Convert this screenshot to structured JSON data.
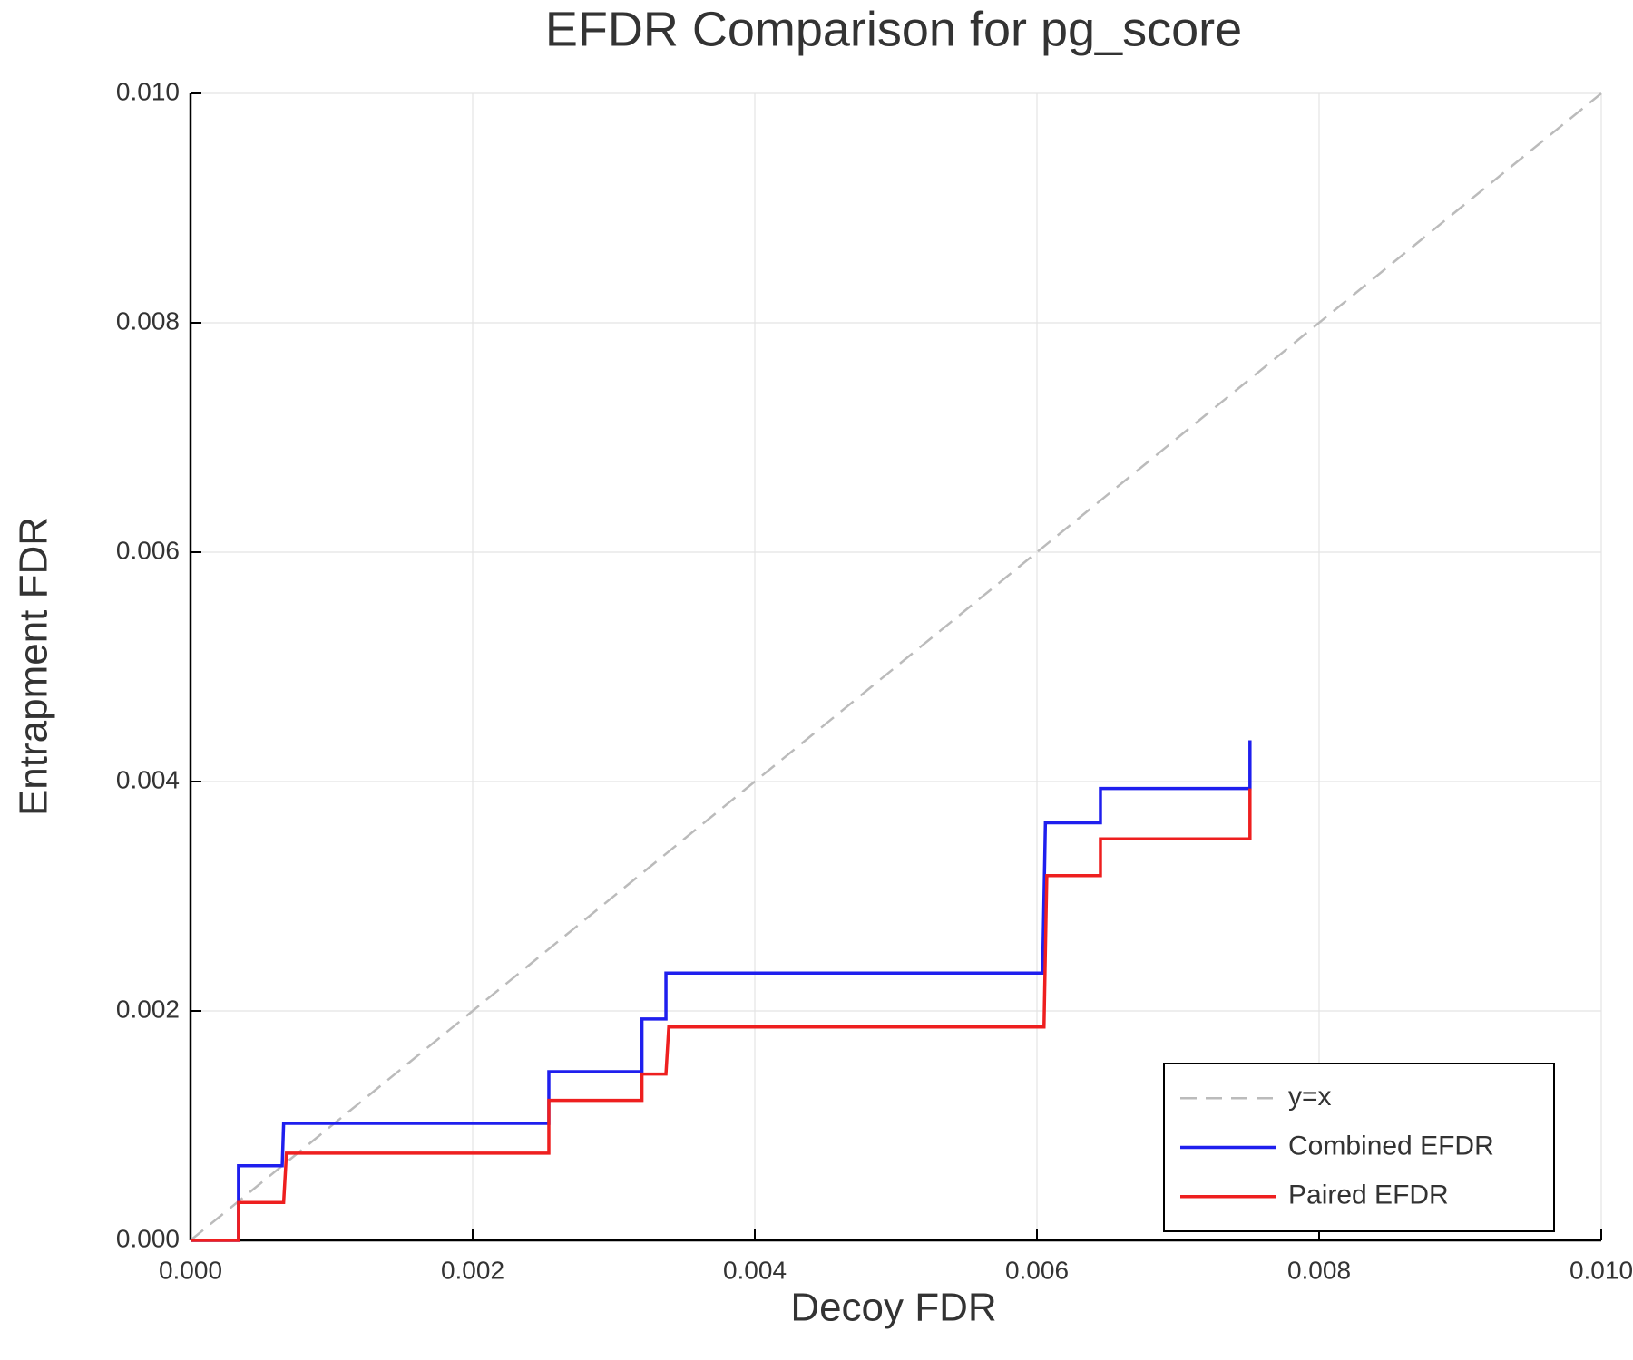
{
  "chart_data": {
    "type": "line",
    "title": "EFDR Comparison for pg_score",
    "x_label": "Decoy FDR",
    "y_label": "Entrapment FDR",
    "xlim": [
      0,
      0.01
    ],
    "ylim": [
      0,
      0.01
    ],
    "xticks": [
      {
        "value": 0,
        "label": "0.000"
      },
      {
        "value": 0.002,
        "label": "0.002"
      },
      {
        "value": 0.004,
        "label": "0.004"
      },
      {
        "value": 0.006,
        "label": "0.006"
      },
      {
        "value": 0.008,
        "label": "0.008"
      },
      {
        "value": 0.01,
        "label": "0.010"
      }
    ],
    "yticks": [
      {
        "value": 0,
        "label": "0.000"
      },
      {
        "value": 0.002,
        "label": "0.002"
      },
      {
        "value": 0.004,
        "label": "0.004"
      },
      {
        "value": 0.006,
        "label": "0.006"
      },
      {
        "value": 0.008,
        "label": "0.008"
      },
      {
        "value": 0.01,
        "label": "0.010"
      }
    ],
    "grid": true,
    "legend_position": "bottom-right",
    "series": [
      {
        "name": "y=x",
        "color": "#bbbbbb",
        "dashed": true,
        "x": [
          0,
          0.01
        ],
        "values": [
          0,
          0.01
        ]
      },
      {
        "name": "Combined EFDR",
        "color": "#1f1fee",
        "dashed": false,
        "x": [
          0,
          0.00034,
          0.00034,
          0.00065,
          0.00066,
          0.00068,
          0.00254,
          0.00254,
          0.0032,
          0.0032,
          0.00337,
          0.00337,
          0.00604,
          0.00606,
          0.00645,
          0.00645,
          0.00751,
          0.00751
        ],
        "values": [
          0,
          0,
          0.00065,
          0.00065,
          0.00102,
          0.00102,
          0.00102,
          0.00147,
          0.00147,
          0.00193,
          0.00193,
          0.00233,
          0.00233,
          0.00364,
          0.00364,
          0.00394,
          0.00394,
          0.00436
        ]
      },
      {
        "name": "Paired EFDR",
        "color": "#ee1f1f",
        "dashed": false,
        "x": [
          0,
          0.00034,
          0.00034,
          0.00066,
          0.00068,
          0.00254,
          0.00254,
          0.0032,
          0.0032,
          0.00337,
          0.00339,
          0.00605,
          0.00607,
          0.00645,
          0.00645,
          0.00751,
          0.00751
        ],
        "values": [
          0,
          0,
          0.00033,
          0.00033,
          0.00076,
          0.00076,
          0.00122,
          0.00122,
          0.00145,
          0.00145,
          0.00186,
          0.00186,
          0.00318,
          0.00318,
          0.0035,
          0.0035,
          0.00394
        ]
      }
    ]
  }
}
